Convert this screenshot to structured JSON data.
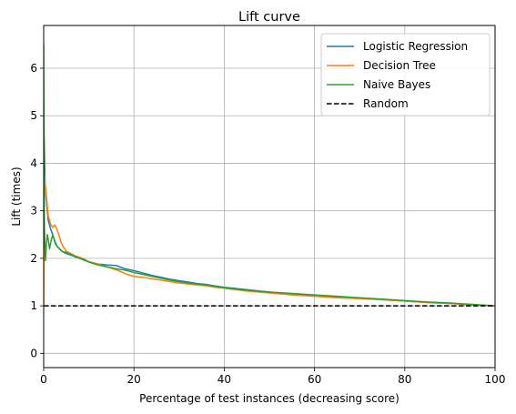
{
  "chart_data": {
    "type": "line",
    "title": "Lift curve",
    "xlabel": "Percentage of test instances (decreasing score)",
    "ylabel": "Lift (times)",
    "xlim": [
      0,
      100
    ],
    "ylim": [
      -0.3,
      6.9
    ],
    "xticks": [
      0,
      20,
      40,
      60,
      80,
      100
    ],
    "yticks": [
      0,
      1,
      2,
      3,
      4,
      5,
      6
    ],
    "grid": true,
    "legend_position": "top-right",
    "series": [
      {
        "name": "Logistic Regression",
        "color": "#1f77b4",
        "style": "solid",
        "x": [
          0,
          0.15,
          0.3,
          0.5,
          0.7,
          1.0,
          1.3,
          1.6,
          2.0,
          2.5,
          3.0,
          3.5,
          4.0,
          5.0,
          6.0,
          7.0,
          8.0,
          9.0,
          10,
          12,
          14,
          16,
          18,
          20,
          22,
          24,
          26,
          28,
          30,
          32,
          34,
          36,
          38,
          40,
          45,
          50,
          55,
          60,
          65,
          70,
          75,
          80,
          85,
          90,
          95,
          100
        ],
        "y": [
          4.9,
          4.3,
          3.6,
          3.3,
          3.1,
          2.8,
          2.7,
          2.6,
          2.5,
          2.35,
          2.25,
          2.2,
          2.15,
          2.1,
          2.07,
          2.03,
          2.0,
          1.96,
          1.93,
          1.88,
          1.86,
          1.85,
          1.78,
          1.74,
          1.69,
          1.64,
          1.6,
          1.56,
          1.53,
          1.5,
          1.47,
          1.45,
          1.42,
          1.39,
          1.34,
          1.29,
          1.25,
          1.22,
          1.19,
          1.16,
          1.13,
          1.1,
          1.07,
          1.05,
          1.02,
          1.0
        ]
      },
      {
        "name": "Decision Tree",
        "color": "#ff7f0e",
        "style": "solid",
        "x": [
          0,
          0.1,
          0.2,
          0.4,
          0.6,
          0.8,
          1.0,
          1.3,
          1.6,
          2.0,
          2.5,
          3.0,
          3.5,
          4.0,
          5.0,
          6.0,
          7.0,
          8.0,
          9.0,
          10,
          12,
          14,
          16,
          18,
          20,
          22,
          24,
          26,
          28,
          30,
          32,
          34,
          36,
          38,
          40,
          45,
          50,
          55,
          60,
          65,
          70,
          75,
          80,
          85,
          90,
          95,
          100
        ],
        "y": [
          1.0,
          3.8,
          3.7,
          3.5,
          3.3,
          3.1,
          2.9,
          2.8,
          2.7,
          2.65,
          2.7,
          2.6,
          2.45,
          2.3,
          2.15,
          2.1,
          2.05,
          2.02,
          1.98,
          1.93,
          1.88,
          1.82,
          1.76,
          1.68,
          1.62,
          1.6,
          1.57,
          1.54,
          1.51,
          1.48,
          1.46,
          1.44,
          1.42,
          1.39,
          1.37,
          1.31,
          1.27,
          1.23,
          1.2,
          1.17,
          1.15,
          1.13,
          1.1,
          1.07,
          1.05,
          1.02,
          1.0
        ]
      },
      {
        "name": "Naive Bayes",
        "color": "#2ca02c",
        "style": "solid",
        "x": [
          0,
          0.1,
          0.2,
          0.4,
          0.6,
          0.8,
          1.0,
          1.3,
          1.6,
          2.0,
          2.3,
          2.6,
          3.0,
          3.5,
          4.0,
          5.0,
          6.0,
          7.0,
          8.0,
          9.0,
          10,
          12,
          14,
          16,
          18,
          20,
          22,
          24,
          26,
          28,
          30,
          32,
          34,
          36,
          38,
          40,
          45,
          50,
          55,
          60,
          65,
          70,
          75,
          80,
          85,
          90,
          95,
          100
        ],
        "y": [
          6.5,
          3.0,
          2.5,
          1.95,
          2.3,
          2.5,
          2.4,
          2.2,
          2.35,
          2.5,
          2.4,
          2.3,
          2.25,
          2.2,
          2.15,
          2.12,
          2.08,
          2.04,
          2.0,
          1.97,
          1.92,
          1.86,
          1.82,
          1.78,
          1.75,
          1.7,
          1.66,
          1.62,
          1.58,
          1.54,
          1.51,
          1.48,
          1.46,
          1.44,
          1.41,
          1.38,
          1.33,
          1.29,
          1.26,
          1.23,
          1.2,
          1.17,
          1.14,
          1.11,
          1.08,
          1.06,
          1.03,
          1.0
        ]
      },
      {
        "name": "Random",
        "color": "#000000",
        "style": "dashed",
        "x": [
          0,
          100
        ],
        "y": [
          1,
          1
        ]
      }
    ]
  }
}
